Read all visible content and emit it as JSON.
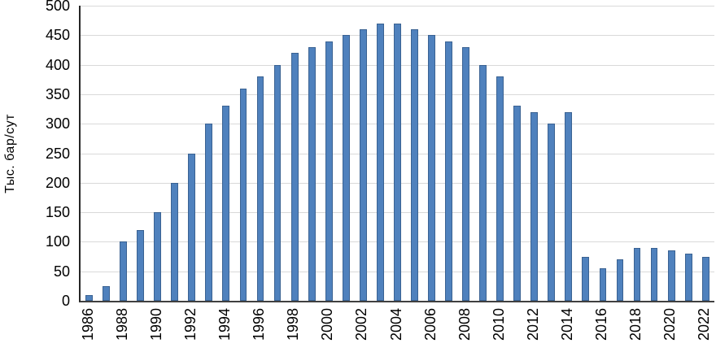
{
  "chart_data": {
    "type": "bar",
    "title": "",
    "xlabel": "",
    "ylabel": "Тыс. бар/сут",
    "ylim": [
      0,
      500
    ],
    "ytick_step": 50,
    "yticks": [
      0,
      50,
      100,
      150,
      200,
      250,
      300,
      350,
      400,
      450,
      500
    ],
    "categories": [
      1986,
      1987,
      1988,
      1989,
      1990,
      1991,
      1992,
      1993,
      1994,
      1995,
      1996,
      1997,
      1998,
      1999,
      2000,
      2001,
      2002,
      2003,
      2004,
      2005,
      2006,
      2007,
      2008,
      2009,
      2010,
      2011,
      2012,
      2013,
      2014,
      2015,
      2016,
      2017,
      2018,
      2019,
      2020,
      2021,
      2022
    ],
    "values": [
      10,
      25,
      100,
      120,
      150,
      200,
      250,
      300,
      330,
      360,
      380,
      400,
      420,
      430,
      440,
      450,
      460,
      470,
      470,
      460,
      450,
      440,
      430,
      400,
      380,
      330,
      320,
      300,
      320,
      75,
      55,
      70,
      90,
      90,
      85,
      80,
      75
    ],
    "xtick_label_interval": 2,
    "grid": true,
    "legend": false,
    "bar_color": "#4f81bd",
    "bar_border_color": "#3a6292",
    "gridline_color": "#d9d9d9",
    "axis_color": "#404040"
  }
}
